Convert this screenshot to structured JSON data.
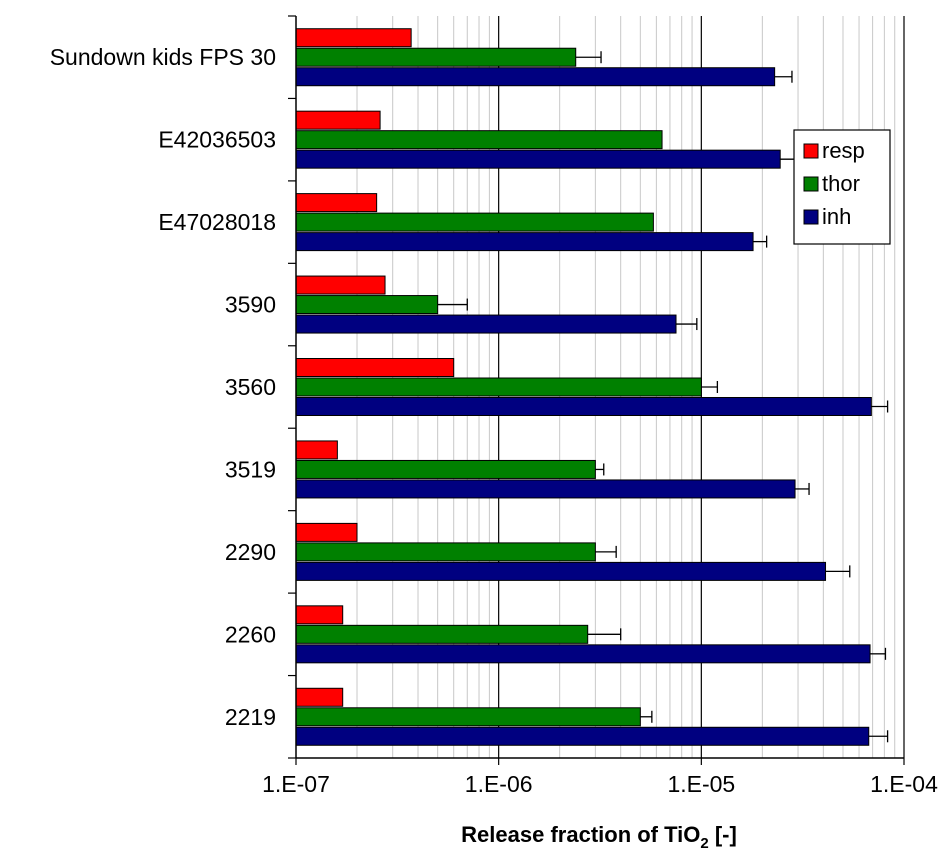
{
  "chart_data": {
    "type": "bar",
    "orientation": "horizontal",
    "xscale": "log",
    "xlim": [
      1e-07,
      0.0001
    ],
    "xticks": [
      {
        "value": 1e-07,
        "label": "1.E-07"
      },
      {
        "value": 1e-06,
        "label": "1.E-06"
      },
      {
        "value": 1e-05,
        "label": "1.E-05"
      },
      {
        "value": 0.0001,
        "label": "1.E-04"
      }
    ],
    "xlabel": "Release fraction of TiO",
    "xlabel_subscript": "2",
    "xlabel_suffix": " [-]",
    "grid": "minor vertical lines, dark major lines",
    "legend_position": "right, upper",
    "categories": [
      "Sundown kids FPS 30",
      "E42036503",
      "E47028018",
      "3590",
      "3560",
      "3519",
      "2290",
      "2260",
      "2219"
    ],
    "series": [
      {
        "name": "resp",
        "color": "#ff0000",
        "values": [
          3.7e-07,
          2.6e-07,
          2.5e-07,
          2.75e-07,
          6e-07,
          1.6e-07,
          2e-07,
          1.7e-07,
          1.7e-07
        ],
        "errors": [
          null,
          null,
          null,
          null,
          null,
          null,
          null,
          null,
          null
        ]
      },
      {
        "name": "thor",
        "color": "#008000",
        "values": [
          2.4e-06,
          6.4e-06,
          5.8e-06,
          5e-07,
          1e-05,
          3e-06,
          3e-06,
          2.75e-06,
          5e-06
        ],
        "errors": [
          3.2e-06,
          null,
          null,
          7e-07,
          1.2e-05,
          3.3e-06,
          3.8e-06,
          4e-06,
          5.7e-06
        ]
      },
      {
        "name": "inh",
        "color": "#000080",
        "values": [
          2.3e-05,
          2.45e-05,
          1.8e-05,
          7.5e-06,
          6.9e-05,
          2.9e-05,
          4.1e-05,
          6.8e-05,
          6.7e-05
        ],
        "errors": [
          2.8e-05,
          3.1e-05,
          2.1e-05,
          9.5e-06,
          8.3e-05,
          3.4e-05,
          5.4e-05,
          8.1e-05,
          8.3e-05
        ]
      }
    ]
  }
}
